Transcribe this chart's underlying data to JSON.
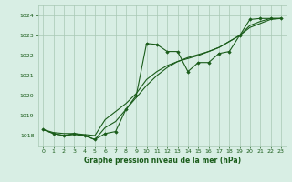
{
  "title": "Graphe pression niveau de la mer (hPa)",
  "bg_color": "#d8eee4",
  "grid_color": "#a8c8b4",
  "line_color": "#1a5c1a",
  "marker_color": "#1a5c1a",
  "xlim": [
    -0.5,
    23.5
  ],
  "ylim": [
    1017.5,
    1024.5
  ],
  "yticks": [
    1018,
    1019,
    1020,
    1021,
    1022,
    1023,
    1024
  ],
  "xticks": [
    0,
    1,
    2,
    3,
    4,
    5,
    6,
    7,
    8,
    9,
    10,
    11,
    12,
    13,
    14,
    15,
    16,
    17,
    18,
    19,
    20,
    21,
    22,
    23
  ],
  "series1_x": [
    0,
    1,
    2,
    3,
    4,
    5,
    6,
    7,
    8,
    9,
    10,
    11,
    12,
    13,
    14,
    15,
    16,
    17,
    18,
    19,
    20,
    21,
    22,
    23
  ],
  "series1_y": [
    1018.3,
    1018.1,
    1018.0,
    1018.1,
    1018.0,
    1017.8,
    1018.1,
    1018.2,
    1019.3,
    1020.0,
    1022.6,
    1022.55,
    1022.2,
    1022.2,
    1021.2,
    1021.65,
    1021.65,
    1022.1,
    1022.2,
    1023.0,
    1023.8,
    1023.85,
    1023.85,
    1023.85
  ],
  "series2_x": [
    0,
    1,
    2,
    3,
    4,
    5,
    6,
    7,
    8,
    9,
    10,
    11,
    12,
    13,
    14,
    15,
    16,
    17,
    18,
    19,
    20,
    21,
    22,
    23
  ],
  "series2_y": [
    1018.3,
    1018.15,
    1018.1,
    1018.1,
    1018.05,
    1018.0,
    1018.8,
    1019.2,
    1019.6,
    1020.1,
    1020.8,
    1021.2,
    1021.5,
    1021.7,
    1021.85,
    1022.0,
    1022.2,
    1022.4,
    1022.7,
    1023.0,
    1023.4,
    1023.6,
    1023.8,
    1023.85
  ],
  "series3_x": [
    0,
    1,
    2,
    3,
    4,
    5,
    6,
    7,
    8,
    9,
    10,
    11,
    12,
    13,
    14,
    15,
    16,
    17,
    18,
    19,
    20,
    21,
    22,
    23
  ],
  "series3_y": [
    1018.3,
    1018.1,
    1018.0,
    1018.05,
    1018.0,
    1017.8,
    1018.4,
    1018.7,
    1019.3,
    1019.9,
    1020.5,
    1021.0,
    1021.4,
    1021.7,
    1021.9,
    1022.05,
    1022.2,
    1022.4,
    1022.7,
    1023.0,
    1023.5,
    1023.7,
    1023.85,
    1023.85
  ]
}
